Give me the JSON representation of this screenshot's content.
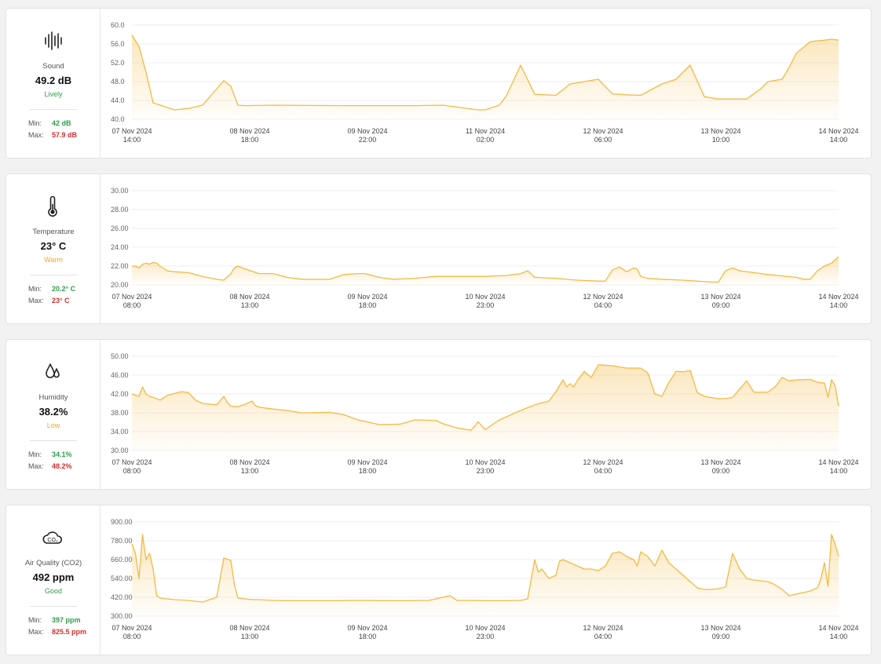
{
  "colors": {
    "line": "#f5b942",
    "good": "#2e9e4a",
    "bad": "#d32f2f",
    "warn": "#f5a623"
  },
  "panels": [
    {
      "icon": "sound-wave-icon",
      "name": "Sound",
      "value": "49.2 dB",
      "status": "Lively",
      "status_color": "#2e9e4a",
      "min_label": "Min:",
      "min": "42 dB",
      "max_label": "Max:",
      "max": "57.9 dB"
    },
    {
      "icon": "thermometer-icon",
      "name": "Temperature",
      "value": "23° C",
      "status": "Warm",
      "status_color": "#f5a623",
      "min_label": "Min:",
      "min": "20.2° C",
      "max_label": "Max:",
      "max": "23° C"
    },
    {
      "icon": "water-drops-icon",
      "name": "Humidity",
      "value": "38.2%",
      "status": "Low",
      "status_color": "#f5a623",
      "min_label": "Min:",
      "min": "34.1%",
      "max_label": "Max:",
      "max": "48.2%"
    },
    {
      "icon": "co2-cloud-icon",
      "name": "Air Quality (CO2)",
      "value": "492 ppm",
      "status": "Good",
      "status_color": "#2e9e4a",
      "min_label": "Min:",
      "min": "397 ppm",
      "max_label": "Max:",
      "max": "825.5 ppm"
    }
  ],
  "chart_data": [
    {
      "type": "area",
      "ylim": [
        40,
        60
      ],
      "yticks": [
        "60.0",
        "56.0",
        "52.0",
        "48.0",
        "44.0",
        "40.0"
      ],
      "xticks": [
        [
          "07 Nov 2024",
          "14:00"
        ],
        [
          "08 Nov 2024",
          "18:00"
        ],
        [
          "09 Nov 2024",
          "22:00"
        ],
        [
          "11 Nov 2024",
          "02:00"
        ],
        [
          "12 Nov 2024",
          "06:00"
        ],
        [
          "13 Nov 2024",
          "10:00"
        ],
        [
          "14 Nov 2024",
          "14:00"
        ]
      ],
      "x": [
        0,
        0.01,
        0.02,
        0.03,
        0.04,
        0.06,
        0.08,
        0.1,
        0.12,
        0.13,
        0.14,
        0.15,
        0.16,
        0.2,
        0.3,
        0.4,
        0.44,
        0.47,
        0.49,
        0.5,
        0.51,
        0.52,
        0.53,
        0.55,
        0.57,
        0.6,
        0.62,
        0.64,
        0.66,
        0.68,
        0.7,
        0.72,
        0.75,
        0.77,
        0.79,
        0.81,
        0.83,
        0.87,
        0.89,
        0.9,
        0.92,
        0.93,
        0.94,
        0.96,
        0.98,
        0.99,
        1.0
      ],
      "values": [
        57.9,
        55.5,
        50,
        43.5,
        43,
        42,
        42.3,
        43,
        46.5,
        48.2,
        47,
        43,
        42.9,
        43,
        42.9,
        42.9,
        43,
        42.4,
        42,
        42,
        42.5,
        43,
        45,
        51.5,
        45.3,
        45.1,
        47.5,
        48,
        48.5,
        45.4,
        45.2,
        45.1,
        47.5,
        48.5,
        51.5,
        44.8,
        44.3,
        44.3,
        46.5,
        48,
        48.5,
        51,
        54,
        56.5,
        56.8,
        57,
        56.8
      ]
    },
    {
      "type": "area",
      "ylim": [
        20,
        30
      ],
      "yticks": [
        "30.00",
        "28.00",
        "26.00",
        "24.00",
        "22.00",
        "20.00"
      ],
      "xticks": [
        [
          "07 Nov 2024",
          "08:00"
        ],
        [
          "08 Nov 2024",
          "13:00"
        ],
        [
          "09 Nov 2024",
          "18:00"
        ],
        [
          "10 Nov 2024",
          "23:00"
        ],
        [
          "12 Nov 2024",
          "04:00"
        ],
        [
          "13 Nov 2024",
          "09:00"
        ],
        [
          "14 Nov 2024",
          "14:00"
        ]
      ],
      "x": [
        0,
        0.005,
        0.01,
        0.015,
        0.02,
        0.025,
        0.03,
        0.035,
        0.04,
        0.05,
        0.06,
        0.08,
        0.1,
        0.12,
        0.13,
        0.14,
        0.145,
        0.15,
        0.16,
        0.18,
        0.2,
        0.22,
        0.24,
        0.28,
        0.3,
        0.32,
        0.33,
        0.35,
        0.37,
        0.4,
        0.43,
        0.47,
        0.5,
        0.53,
        0.55,
        0.56,
        0.57,
        0.6,
        0.63,
        0.66,
        0.67,
        0.68,
        0.69,
        0.7,
        0.71,
        0.715,
        0.72,
        0.73,
        0.75,
        0.78,
        0.82,
        0.83,
        0.84,
        0.85,
        0.86,
        0.88,
        0.9,
        0.94,
        0.95,
        0.96,
        0.97,
        0.98,
        0.99,
        1.0
      ],
      "values": [
        22,
        22,
        21.8,
        22.2,
        22.3,
        22.2,
        22.4,
        22.3,
        22,
        21.5,
        21.4,
        21.3,
        20.9,
        20.6,
        20.5,
        21.2,
        21.8,
        22,
        21.7,
        21.2,
        21.2,
        20.8,
        20.6,
        20.6,
        21.1,
        21.2,
        21.2,
        20.8,
        20.6,
        20.7,
        20.9,
        20.9,
        20.9,
        21,
        21.2,
        21.5,
        20.8,
        20.7,
        20.5,
        20.4,
        20.4,
        21.6,
        21.9,
        21.4,
        21.8,
        21.7,
        20.9,
        20.7,
        20.6,
        20.5,
        20.3,
        20.3,
        21.5,
        21.8,
        21.5,
        21.3,
        21.1,
        20.8,
        20.6,
        20.6,
        21.5,
        22,
        22.3,
        23
      ]
    },
    {
      "type": "area",
      "ylim": [
        30,
        50
      ],
      "yticks": [
        "50.00",
        "46.00",
        "42.00",
        "38.00",
        "34.00",
        "30.00"
      ],
      "xticks": [
        [
          "07 Nov 2024",
          "08:00"
        ],
        [
          "08 Nov 2024",
          "13:00"
        ],
        [
          "09 Nov 2024",
          "18:00"
        ],
        [
          "10 Nov 2024",
          "23:00"
        ],
        [
          "12 Nov 2024",
          "04:00"
        ],
        [
          "13 Nov 2024",
          "09:00"
        ],
        [
          "14 Nov 2024",
          "14:00"
        ]
      ],
      "x": [
        0,
        0.01,
        0.015,
        0.02,
        0.025,
        0.03,
        0.04,
        0.05,
        0.06,
        0.07,
        0.08,
        0.09,
        0.1,
        0.12,
        0.13,
        0.135,
        0.14,
        0.15,
        0.16,
        0.17,
        0.175,
        0.18,
        0.2,
        0.22,
        0.24,
        0.28,
        0.3,
        0.32,
        0.35,
        0.38,
        0.4,
        0.43,
        0.44,
        0.46,
        0.48,
        0.49,
        0.5,
        0.51,
        0.52,
        0.55,
        0.57,
        0.59,
        0.6,
        0.61,
        0.615,
        0.62,
        0.625,
        0.63,
        0.64,
        0.65,
        0.66,
        0.66,
        0.68,
        0.7,
        0.72,
        0.73,
        0.74,
        0.75,
        0.76,
        0.77,
        0.78,
        0.79,
        0.8,
        0.81,
        0.83,
        0.84,
        0.85,
        0.87,
        0.88,
        0.9,
        0.91,
        0.92,
        0.93,
        0.94,
        0.96,
        0.97,
        0.98,
        0.985,
        0.99,
        0.995,
        1.0
      ],
      "values": [
        42,
        41.5,
        43.5,
        42,
        41.5,
        41.3,
        40.7,
        41.7,
        42.1,
        42.5,
        42.3,
        40.7,
        40,
        39.7,
        41.5,
        40.2,
        39.4,
        39.3,
        39.8,
        40.5,
        39.5,
        39.2,
        38.8,
        38.5,
        38,
        38.1,
        37.6,
        36.5,
        35.5,
        35.6,
        36.5,
        36.4,
        35.7,
        34.8,
        34.3,
        36.1,
        34.4,
        35.5,
        36.5,
        38.5,
        39.7,
        40.5,
        42.5,
        45,
        43.5,
        44.2,
        43.5,
        44.8,
        46.8,
        45.5,
        48.2,
        48.2,
        48,
        47.5,
        47.5,
        46.5,
        42,
        41.5,
        44.5,
        46.8,
        46.7,
        47,
        42.3,
        41.5,
        41,
        41,
        41.3,
        44.8,
        42.4,
        42.4,
        43.5,
        45.5,
        44.8,
        45,
        45.1,
        44.5,
        44.3,
        41.3,
        45,
        43.8,
        39.4
      ]
    },
    {
      "type": "area",
      "ylim": [
        300,
        900
      ],
      "yticks": [
        "900.00",
        "780.00",
        "660.00",
        "540.00",
        "420.00",
        "300.00"
      ],
      "xticks": [
        [
          "07 Nov 2024",
          "08:00"
        ],
        [
          "08 Nov 2024",
          "13:00"
        ],
        [
          "09 Nov 2024",
          "18:00"
        ],
        [
          "10 Nov 2024",
          "23:00"
        ],
        [
          "12 Nov 2024",
          "04:00"
        ],
        [
          "13 Nov 2024",
          "09:00"
        ],
        [
          "14 Nov 2024",
          "14:00"
        ]
      ],
      "x": [
        0,
        0.005,
        0.01,
        0.015,
        0.02,
        0.025,
        0.03,
        0.035,
        0.04,
        0.045,
        0.05,
        0.06,
        0.08,
        0.1,
        0.12,
        0.13,
        0.14,
        0.145,
        0.15,
        0.16,
        0.17,
        0.18,
        0.2,
        0.24,
        0.28,
        0.32,
        0.38,
        0.42,
        0.45,
        0.46,
        0.47,
        0.52,
        0.55,
        0.56,
        0.57,
        0.575,
        0.58,
        0.59,
        0.6,
        0.605,
        0.61,
        0.62,
        0.63,
        0.64,
        0.65,
        0.66,
        0.67,
        0.68,
        0.69,
        0.7,
        0.71,
        0.715,
        0.72,
        0.73,
        0.74,
        0.75,
        0.76,
        0.78,
        0.8,
        0.81,
        0.82,
        0.83,
        0.84,
        0.85,
        0.86,
        0.87,
        0.88,
        0.9,
        0.91,
        0.92,
        0.93,
        0.94,
        0.95,
        0.96,
        0.97,
        0.975,
        0.98,
        0.985,
        0.99,
        0.995,
        1.0
      ],
      "values": [
        760,
        700,
        540,
        820,
        660,
        700,
        600,
        430,
        415,
        412,
        410,
        405,
        400,
        390,
        420,
        670,
        655,
        500,
        415,
        410,
        405,
        405,
        400,
        398,
        398,
        400,
        398,
        400,
        430,
        400,
        400,
        398,
        400,
        410,
        660,
        580,
        600,
        540,
        560,
        650,
        660,
        640,
        620,
        600,
        600,
        590,
        620,
        700,
        710,
        680,
        660,
        620,
        710,
        680,
        620,
        720,
        640,
        560,
        480,
        470,
        470,
        475,
        485,
        700,
        600,
        540,
        530,
        520,
        500,
        470,
        430,
        440,
        450,
        460,
        480,
        540,
        640,
        490,
        820,
        760,
        680
      ]
    }
  ]
}
